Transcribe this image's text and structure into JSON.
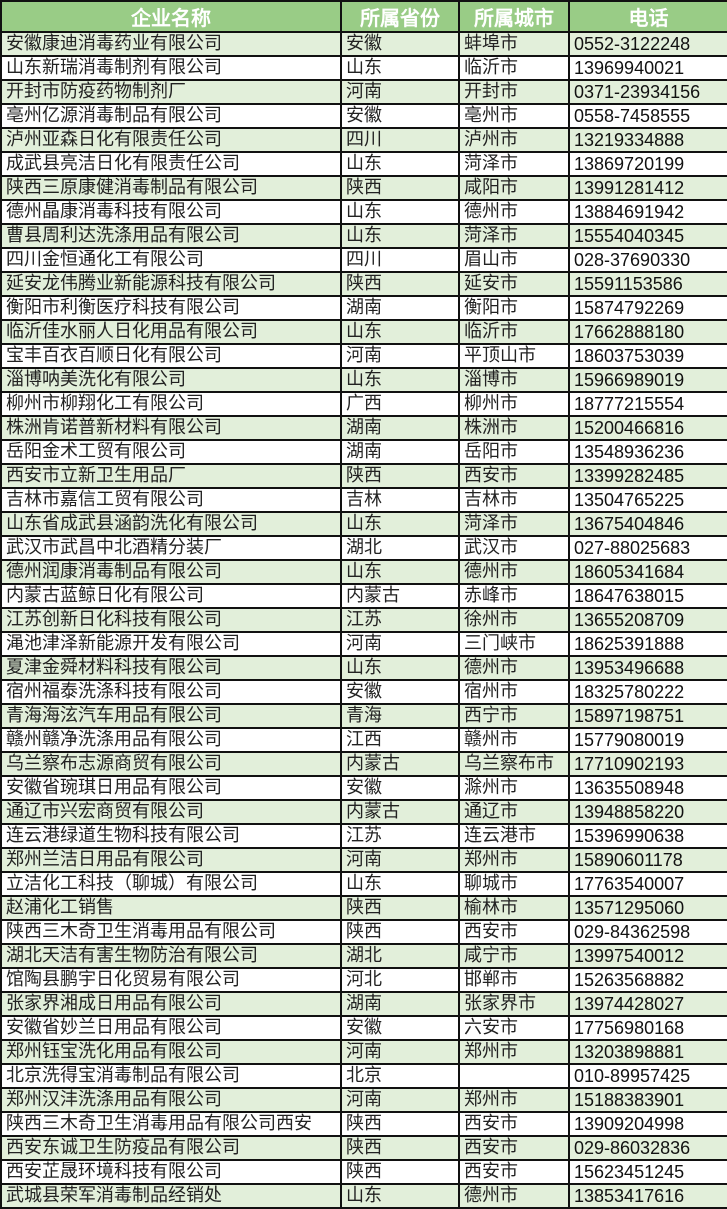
{
  "header": [
    "企业名称",
    "所属省份",
    "所属城市",
    "电话"
  ],
  "colors": {
    "header_bg": "#99cc86",
    "header_text": "#ffffff",
    "odd_row_bg": "#e2efda",
    "even_row_bg": "#ffffff",
    "border": "#111111"
  },
  "rows": [
    [
      "安徽康迪消毒药业有限公司",
      "安徽",
      "蚌埠市",
      "0552-3122248"
    ],
    [
      "山东新瑞消毒制剂有限公司",
      "山东",
      "临沂市",
      "13969940021"
    ],
    [
      "开封市防疫药物制剂厂",
      "河南",
      "开封市",
      "0371-23934156"
    ],
    [
      "亳州亿源消毒制品有限公司",
      "安徽",
      "亳州市",
      "0558-7458555"
    ],
    [
      "泸州亚森日化有限责任公司",
      "四川",
      "泸州市",
      "13219334888"
    ],
    [
      "成武县亮洁日化有限责任公司",
      "山东",
      "菏泽市",
      "13869720199"
    ],
    [
      "陕西三原康健消毒制品有限公司",
      "陕西",
      "咸阳市",
      "13991281412"
    ],
    [
      "德州晶康消毒科技有限公司",
      "山东",
      "德州市",
      "13884691942"
    ],
    [
      "曹县周利达洗涤用品有限公司",
      "山东",
      "菏泽市",
      "15554040345"
    ],
    [
      "四川金恒通化工有限公司",
      "四川",
      "眉山市",
      "028-37690330"
    ],
    [
      "延安龙伟腾业新能源科技有限公司",
      "陕西",
      "延安市",
      "15591153586"
    ],
    [
      "衡阳市利衡医疗科技有限公司",
      "湖南",
      "衡阳市",
      "15874792269"
    ],
    [
      "临沂佳水丽人日化用品有限公司",
      "山东",
      "临沂市",
      "17662888180"
    ],
    [
      "宝丰百衣百顺日化有限公司",
      "河南",
      "平顶山市",
      "18603753039"
    ],
    [
      "淄博呐美洗化有限公司",
      "山东",
      "淄博市",
      "15966989019"
    ],
    [
      "柳州市柳翔化工有限公司",
      "广西",
      "柳州市",
      "18777215554"
    ],
    [
      "株洲肯诺普新材料有限公司",
      "湖南",
      "株洲市",
      "15200466816"
    ],
    [
      "岳阳金术工贸有限公司",
      "湖南",
      "岳阳市",
      "13548936236"
    ],
    [
      "西安市立新卫生用品厂",
      "陕西",
      "西安市",
      "13399282485"
    ],
    [
      "吉林市嘉信工贸有限公司",
      "吉林",
      "吉林市",
      "13504765225"
    ],
    [
      "山东省成武县涵韵洗化有限公司",
      "山东",
      "菏泽市",
      "13675404846"
    ],
    [
      "武汉市武昌中北酒精分装厂",
      "湖北",
      "武汉市",
      "027-88025683"
    ],
    [
      "德州润康消毒制品有限公司",
      "山东",
      "德州市",
      "18605341684"
    ],
    [
      "内蒙古蓝鲸日化有限公司",
      "内蒙古",
      "赤峰市",
      "18647638015"
    ],
    [
      "江苏创新日化科技有限公司",
      "江苏",
      "徐州市",
      "13655208709"
    ],
    [
      "渑池津泽新能源开发有限公司",
      "河南",
      "三门峡市",
      "18625391888"
    ],
    [
      "夏津金舜材料科技有限公司",
      "山东",
      "德州市",
      "13953496688"
    ],
    [
      "宿州福泰洗涤科技有限公司",
      "安徽",
      "宿州市",
      "18325780222"
    ],
    [
      "青海海泫汽车用品有限公司",
      "青海",
      "西宁市",
      "15897198751"
    ],
    [
      "赣州赣净洗涤用品有限公司",
      "江西",
      "赣州市",
      "15779080019"
    ],
    [
      "乌兰察布志源商贸有限公司",
      "内蒙古",
      "乌兰察布市",
      "17710902193"
    ],
    [
      "安徽省琬琪日用品有限公司",
      "安徽",
      "滁州市",
      "13635508948"
    ],
    [
      "通辽市兴宏商贸有限公司",
      "内蒙古",
      "通辽市",
      "13948858220"
    ],
    [
      "连云港绿道生物科技有限公司",
      "江苏",
      "连云港市",
      "15396990638"
    ],
    [
      "郑州兰洁日用品有限公司",
      "河南",
      "郑州市",
      "15890601178"
    ],
    [
      "立洁化工科技（聊城）有限公司",
      "山东",
      "聊城市",
      "17763540007"
    ],
    [
      "赵浦化工销售",
      "陕西",
      "榆林市",
      "13571295060"
    ],
    [
      "陕西三木奇卫生消毒用品有限公司",
      "陕西",
      "西安市",
      "029-84362598"
    ],
    [
      "湖北天洁有害生物防治有限公司",
      "湖北",
      "咸宁市",
      "13997540012"
    ],
    [
      "馆陶县鹏宇日化贸易有限公司",
      "河北",
      "邯郸市",
      "15263568882"
    ],
    [
      "张家界湘成日用品有限公司",
      "湖南",
      "张家界市",
      "13974428027"
    ],
    [
      "安徽省妙兰日用品有限公司",
      "安徽",
      "六安市",
      "17756980168"
    ],
    [
      "郑州钰宝洗化用品有限公司",
      "河南",
      "郑州市",
      "13203898881"
    ],
    [
      "北京洗得宝消毒制品有限公司",
      "北京",
      "",
      "010-89957425"
    ],
    [
      "郑州汉沣洗涤用品有限公司",
      "河南",
      "郑州市",
      "15188383901"
    ],
    [
      "陕西三木奇卫生消毒用品有限公司西安",
      "陕西",
      "西安市",
      "13909204998"
    ],
    [
      "西安东诚卫生防疫品有限公司",
      "陕西",
      "西安市",
      "029-86032836"
    ],
    [
      "西安芷晟环境科技有限公司",
      "陕西",
      "西安市",
      "15623451245"
    ],
    [
      "武城县荣军消毒制品经销处",
      "山东",
      "德州市",
      "13853417616"
    ]
  ]
}
